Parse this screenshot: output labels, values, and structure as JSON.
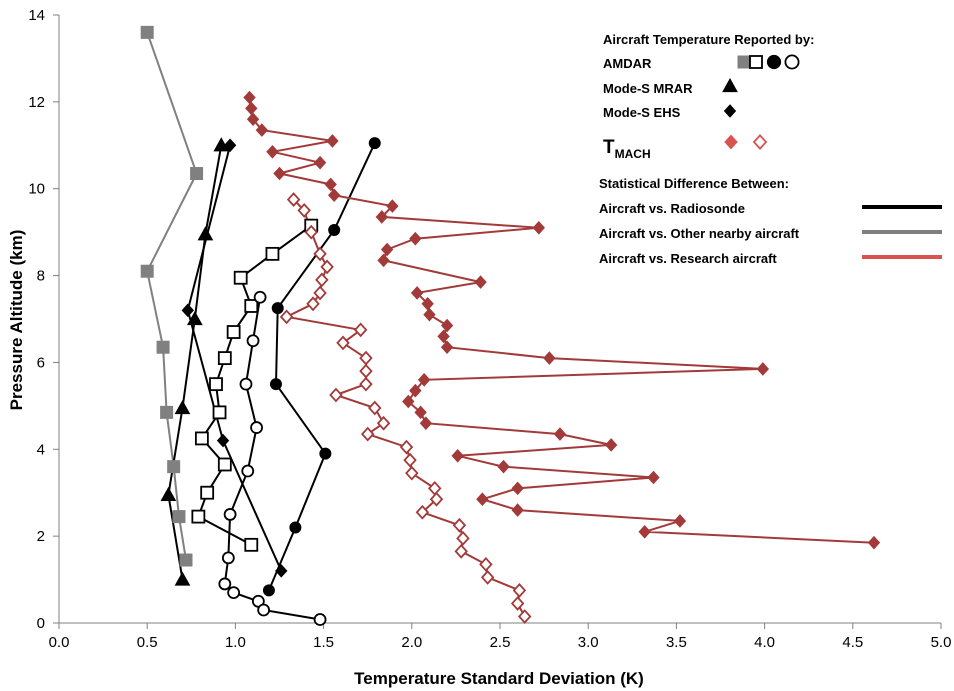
{
  "chart_data": {
    "type": "scatter",
    "xlabel": "Temperature Standard Deviation (K)",
    "ylabel": "Pressure Altitude (km)",
    "xlim": [
      0,
      5
    ],
    "ylim": [
      0,
      14
    ],
    "xticks": [
      "0.0",
      "0.5",
      "1.0",
      "1.5",
      "2.0",
      "2.5",
      "3.0",
      "3.5",
      "4.0",
      "4.5",
      "5.0"
    ],
    "yticks": [
      "0",
      "2",
      "4",
      "6",
      "8",
      "10",
      "12",
      "14"
    ],
    "grid": false,
    "colors": {
      "radiosonde": "#000000",
      "nearby": "#808080",
      "research": "#a33a3a",
      "tmach_legend": "#d9534f"
    },
    "legend": {
      "reported_title": "Aircraft Temperature Reported by:",
      "amdar": "AMDAR",
      "mrar": "Mode-S MRAR",
      "ehs": "Mode-S EHS",
      "tmach_main": "T",
      "tmach_sub": "MACH",
      "stat_title": "Statistical Difference Between:",
      "vs_radiosonde": "Aircraft vs. Radiosonde",
      "vs_nearby": "Aircraft vs. Other nearby aircraft",
      "vs_research": "Aircraft vs. Research aircraft"
    },
    "series": [
      {
        "key": "amdar_nearby",
        "marker": "square",
        "fill": "filled",
        "line": "nearby",
        "points": [
          [
            0.5,
            13.6
          ],
          [
            0.78,
            10.35
          ],
          [
            0.5,
            8.1
          ],
          [
            0.59,
            6.35
          ],
          [
            0.61,
            4.85
          ],
          [
            0.65,
            3.6
          ],
          [
            0.68,
            2.45
          ],
          [
            0.72,
            1.45
          ]
        ]
      },
      {
        "key": "mrar_radiosonde",
        "marker": "triangle",
        "fill": "filled",
        "line": "radiosonde",
        "points": [
          [
            0.92,
            11.0
          ],
          [
            0.83,
            8.95
          ],
          [
            0.77,
            7.0
          ],
          [
            0.7,
            4.95
          ],
          [
            0.62,
            2.95
          ],
          [
            0.7,
            1.0
          ]
        ]
      },
      {
        "key": "ehs_radiosonde",
        "marker": "diamond",
        "fill": "filled",
        "line": "radiosonde",
        "points": [
          [
            0.97,
            11.0
          ],
          [
            0.73,
            7.2
          ],
          [
            0.93,
            4.2
          ],
          [
            1.26,
            1.2
          ]
        ]
      },
      {
        "key": "amdar_square_open",
        "marker": "square",
        "fill": "open",
        "line": "radiosonde",
        "points": [
          [
            1.43,
            9.15
          ],
          [
            1.21,
            8.5
          ],
          [
            1.03,
            7.95
          ],
          [
            1.09,
            7.3
          ],
          [
            0.99,
            6.7
          ],
          [
            0.94,
            6.1
          ],
          [
            0.89,
            5.5
          ],
          [
            0.91,
            4.85
          ],
          [
            0.81,
            4.25
          ],
          [
            0.94,
            3.65
          ],
          [
            0.84,
            3.0
          ],
          [
            0.79,
            2.45
          ],
          [
            1.09,
            1.8
          ]
        ]
      },
      {
        "key": "amdar_circle_filled",
        "marker": "circle",
        "fill": "filled",
        "line": "radiosonde",
        "points": [
          [
            1.79,
            11.05
          ],
          [
            1.56,
            9.05
          ],
          [
            1.24,
            7.25
          ],
          [
            1.23,
            5.5
          ],
          [
            1.51,
            3.9
          ],
          [
            1.34,
            2.2
          ],
          [
            1.19,
            0.75
          ]
        ]
      },
      {
        "key": "amdar_circle_open",
        "marker": "circle",
        "fill": "open",
        "line": "radiosonde",
        "points": [
          [
            1.14,
            7.5
          ],
          [
            1.1,
            6.5
          ],
          [
            1.06,
            5.5
          ],
          [
            1.12,
            4.5
          ],
          [
            1.07,
            3.5
          ],
          [
            0.97,
            2.5
          ],
          [
            0.96,
            1.5
          ],
          [
            0.94,
            0.9
          ],
          [
            0.99,
            0.7
          ],
          [
            1.13,
            0.5
          ],
          [
            1.16,
            0.3
          ],
          [
            1.48,
            0.08
          ]
        ]
      },
      {
        "key": "tmach_filled",
        "marker": "diamond",
        "fill": "filled",
        "line": "research",
        "points": [
          [
            1.08,
            12.1
          ],
          [
            1.09,
            11.85
          ],
          [
            1.1,
            11.6
          ],
          [
            1.15,
            11.35
          ],
          [
            1.55,
            11.1
          ],
          [
            1.21,
            10.85
          ],
          [
            1.48,
            10.6
          ],
          [
            1.25,
            10.35
          ],
          [
            1.54,
            10.1
          ],
          [
            1.56,
            9.85
          ],
          [
            1.89,
            9.6
          ],
          [
            1.83,
            9.35
          ],
          [
            2.72,
            9.1
          ],
          [
            2.02,
            8.85
          ],
          [
            1.86,
            8.6
          ],
          [
            1.84,
            8.35
          ],
          [
            2.39,
            7.85
          ],
          [
            2.03,
            7.6
          ],
          [
            2.09,
            7.35
          ],
          [
            2.1,
            7.1
          ],
          [
            2.2,
            6.85
          ],
          [
            2.18,
            6.6
          ],
          [
            2.2,
            6.35
          ],
          [
            2.78,
            6.1
          ],
          [
            3.99,
            5.85
          ],
          [
            2.07,
            5.6
          ],
          [
            2.02,
            5.35
          ],
          [
            1.98,
            5.1
          ],
          [
            2.05,
            4.85
          ],
          [
            2.08,
            4.6
          ],
          [
            2.84,
            4.35
          ],
          [
            3.13,
            4.1
          ],
          [
            2.26,
            3.85
          ],
          [
            2.52,
            3.6
          ],
          [
            3.37,
            3.35
          ],
          [
            2.6,
            3.1
          ],
          [
            2.4,
            2.85
          ],
          [
            2.6,
            2.6
          ],
          [
            3.52,
            2.35
          ],
          [
            3.32,
            2.1
          ],
          [
            4.62,
            1.85
          ]
        ]
      },
      {
        "key": "tmach_open",
        "marker": "diamond",
        "fill": "open",
        "line": "research",
        "points": [
          [
            1.33,
            9.75
          ],
          [
            1.39,
            9.5
          ],
          [
            1.43,
            9.0
          ],
          [
            1.48,
            8.5
          ],
          [
            1.52,
            8.2
          ],
          [
            1.49,
            7.9
          ],
          [
            1.48,
            7.6
          ],
          [
            1.44,
            7.35
          ],
          [
            1.29,
            7.05
          ],
          [
            1.71,
            6.75
          ],
          [
            1.61,
            6.45
          ],
          [
            1.74,
            6.1
          ],
          [
            1.74,
            5.8
          ],
          [
            1.74,
            5.5
          ],
          [
            1.57,
            5.25
          ],
          [
            1.79,
            4.95
          ],
          [
            1.84,
            4.6
          ],
          [
            1.75,
            4.35
          ],
          [
            1.97,
            4.05
          ],
          [
            1.99,
            3.75
          ],
          [
            2.0,
            3.45
          ],
          [
            2.13,
            3.1
          ],
          [
            2.14,
            2.85
          ],
          [
            2.06,
            2.55
          ],
          [
            2.27,
            2.25
          ],
          [
            2.29,
            1.95
          ],
          [
            2.28,
            1.65
          ],
          [
            2.42,
            1.35
          ],
          [
            2.43,
            1.05
          ],
          [
            2.61,
            0.75
          ],
          [
            2.6,
            0.45
          ],
          [
            2.64,
            0.15
          ]
        ]
      }
    ]
  }
}
